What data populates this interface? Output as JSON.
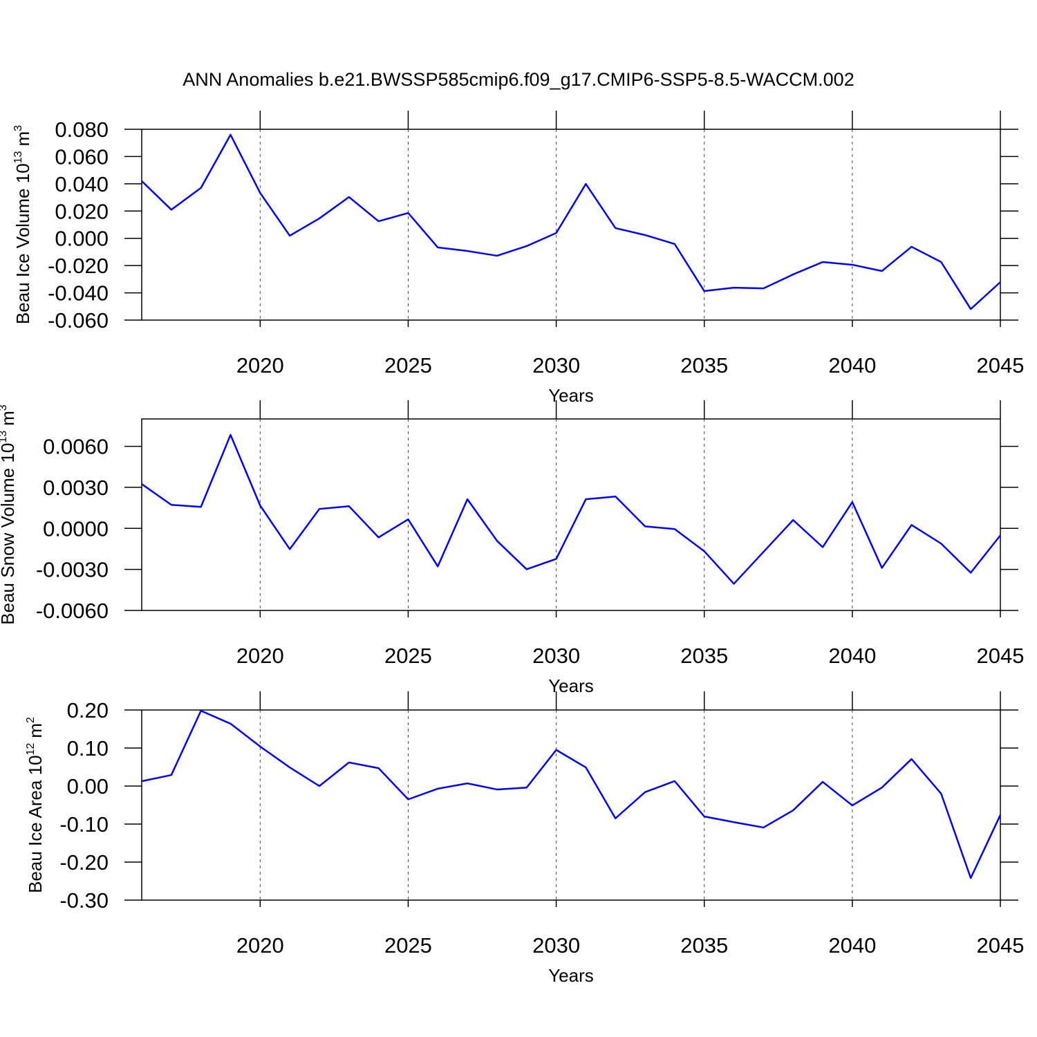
{
  "title": "ANN Anomalies b.e21.BWSSP585cmip6.f09_g17.CMIP6-SSP5-8.5-WACCM.002",
  "chart_data": [
    {
      "type": "line",
      "ylabel": [
        "Beau Ice Volume 10",
        "13",
        "m",
        "3"
      ],
      "xlabel": "Years",
      "x": [
        2016,
        2017,
        2018,
        2019,
        2020,
        2021,
        2022,
        2023,
        2024,
        2025,
        2026,
        2027,
        2028,
        2029,
        2030,
        2031,
        2032,
        2033,
        2034,
        2035,
        2036,
        2037,
        2038,
        2039,
        2040,
        2041,
        2042,
        2043,
        2044,
        2045
      ],
      "values": [
        0.042,
        0.021,
        0.037,
        0.076,
        0.0333,
        0.0019,
        0.0146,
        0.0303,
        0.0125,
        0.0186,
        -0.0067,
        -0.0093,
        -0.0128,
        -0.0057,
        0.0039,
        0.0399,
        0.0075,
        0.0024,
        -0.0042,
        -0.0387,
        -0.0362,
        -0.0367,
        -0.0265,
        -0.0174,
        -0.0194,
        -0.024,
        -0.0062,
        -0.0174,
        -0.0519,
        -0.0321
      ],
      "color": "#0000ff",
      "xlim": [
        2016,
        2045
      ],
      "xticks": [
        2020,
        2025,
        2030,
        2035,
        2040,
        2045
      ],
      "ylim": [
        -0.06,
        0.08
      ],
      "yticks": [
        {
          "value": -0.06,
          "label": "-0.060"
        },
        {
          "value": -0.04,
          "label": "-0.040"
        },
        {
          "value": -0.02,
          "label": "-0.020"
        },
        {
          "value": 0,
          "label": "0.000"
        },
        {
          "value": 0.02,
          "label": "0.020"
        },
        {
          "value": 0.04,
          "label": "0.040"
        },
        {
          "value": 0.06,
          "label": "0.060"
        },
        {
          "value": 0.08,
          "label": "0.080"
        }
      ],
      "grid": true
    },
    {
      "type": "line",
      "ylabel": [
        "Beau Snow Volume 10",
        "13",
        "m",
        "3"
      ],
      "xlabel": "Years",
      "x": [
        2016,
        2017,
        2018,
        2019,
        2020,
        2021,
        2022,
        2023,
        2024,
        2025,
        2026,
        2027,
        2028,
        2029,
        2030,
        2031,
        2032,
        2033,
        2034,
        2035,
        2036,
        2037,
        2038,
        2039,
        2040,
        2041,
        2042,
        2043,
        2044,
        2045
      ],
      "values": [
        0.00324,
        0.00172,
        0.00157,
        0.00684,
        0.00167,
        -0.00152,
        0.00142,
        0.00162,
        -0.00066,
        0.00066,
        -0.00278,
        0.00213,
        -0.00091,
        -0.00299,
        -0.00223,
        0.00213,
        0.00233,
        0.00015,
        -5e-05,
        -0.00167,
        -0.00405,
        -0.00172,
        0.00061,
        -0.00137,
        0.00192,
        -0.00289,
        0.00025,
        -0.00111,
        -0.00324,
        -0.00051
      ],
      "color": "#0000ff",
      "xlim": [
        2016,
        2045
      ],
      "xticks": [
        2020,
        2025,
        2030,
        2035,
        2040,
        2045
      ],
      "ylim": [
        -0.006,
        0.008
      ],
      "yticks": [
        {
          "value": -0.006,
          "label": "-0.0060"
        },
        {
          "value": -0.003,
          "label": "-0.0030"
        },
        {
          "value": 0,
          "label": "0.0000"
        },
        {
          "value": 0.003,
          "label": "0.0030"
        },
        {
          "value": 0.006,
          "label": "0.0060"
        }
      ],
      "grid": true
    },
    {
      "type": "line",
      "ylabel": [
        "Beau Ice Area 10",
        "12",
        "m",
        "2"
      ],
      "xlabel": "Years",
      "x": [
        2016,
        2017,
        2018,
        2019,
        2020,
        2021,
        2022,
        2023,
        2024,
        2025,
        2026,
        2027,
        2028,
        2029,
        2030,
        2031,
        2032,
        2033,
        2034,
        2035,
        2036,
        2037,
        2038,
        2039,
        2040,
        2041,
        2042,
        2043,
        2044,
        2045
      ],
      "values": [
        0.0127,
        0.029,
        0.198,
        0.164,
        0.104,
        0.049,
        0.0,
        0.062,
        0.047,
        -0.035,
        -0.007,
        0.007,
        -0.009,
        -0.004,
        0.095,
        0.049,
        -0.085,
        -0.016,
        0.013,
        -0.08,
        -0.095,
        -0.109,
        -0.064,
        0.011,
        -0.051,
        -0.004,
        0.071,
        -0.02,
        -0.242,
        -0.076
      ],
      "color": "#0000ff",
      "xlim": [
        2016,
        2045
      ],
      "xticks": [
        2020,
        2025,
        2030,
        2035,
        2040,
        2045
      ],
      "ylim": [
        -0.3,
        0.2
      ],
      "yticks": [
        {
          "value": -0.3,
          "label": "-0.30"
        },
        {
          "value": -0.2,
          "label": "-0.20"
        },
        {
          "value": -0.1,
          "label": "-0.10"
        },
        {
          "value": 0,
          "label": "0.00"
        },
        {
          "value": 0.1,
          "label": "0.10"
        },
        {
          "value": 0.2,
          "label": "0.20"
        }
      ],
      "grid": true
    }
  ]
}
